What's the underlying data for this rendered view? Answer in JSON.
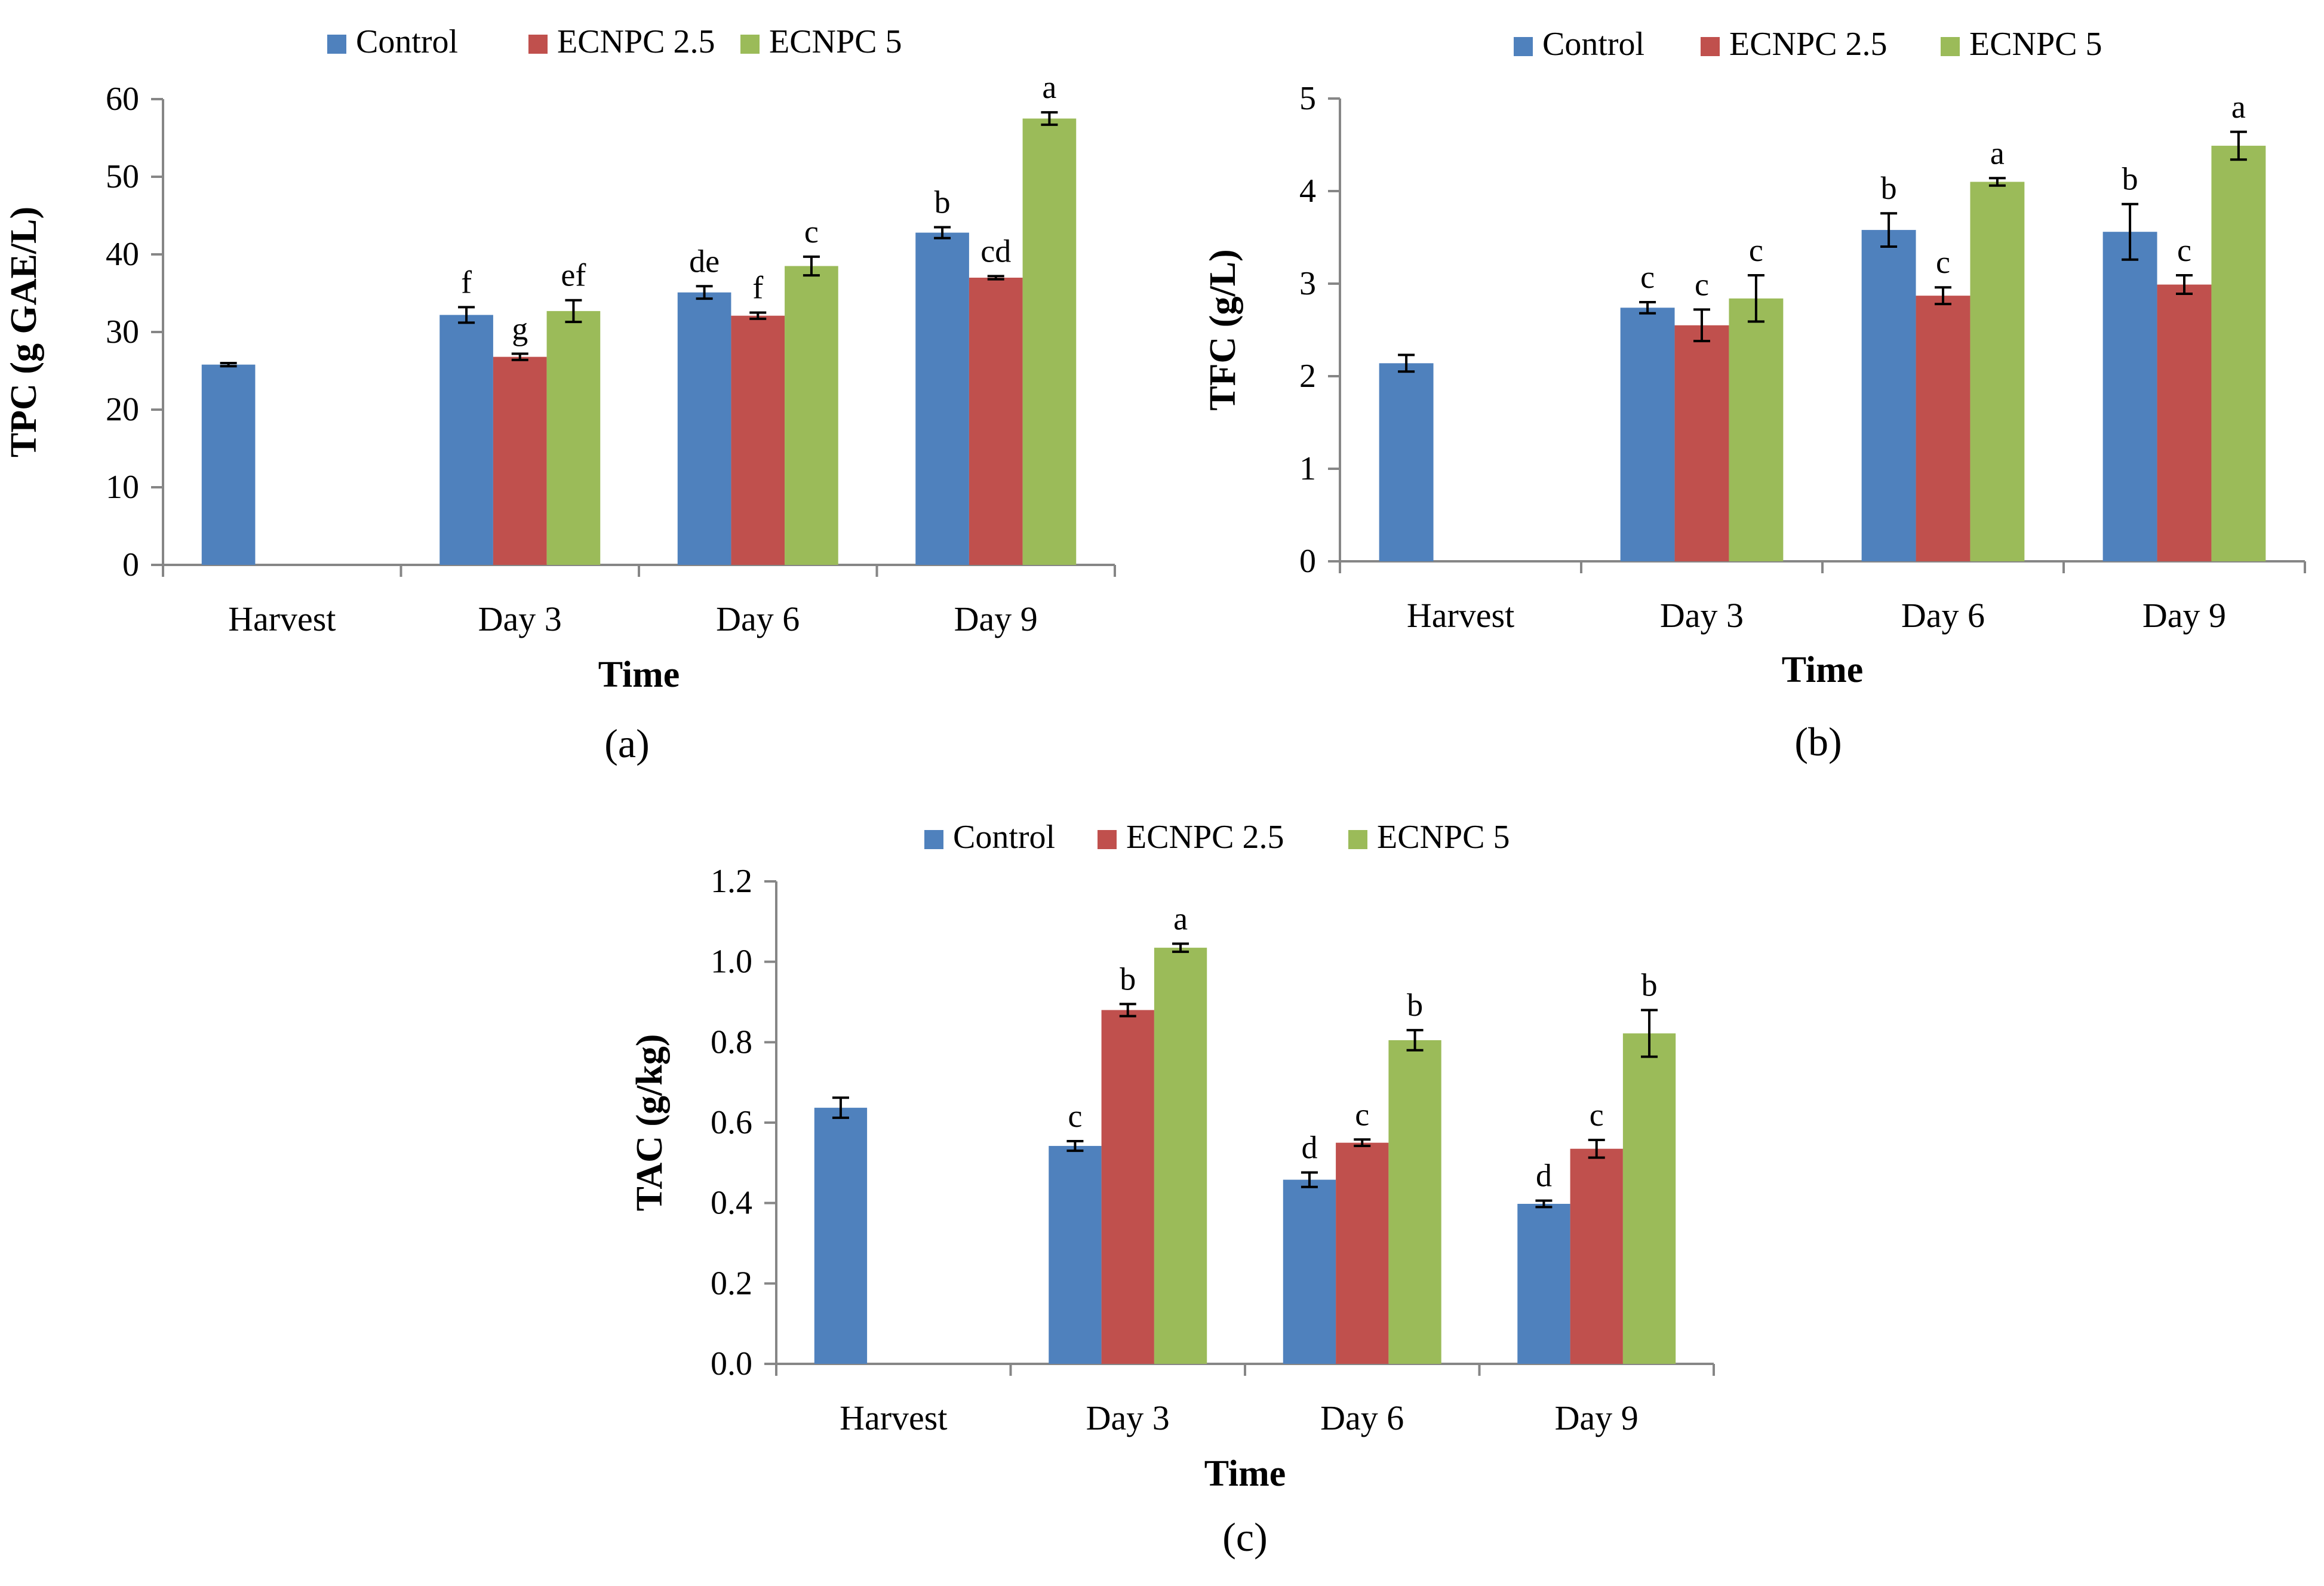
{
  "chart_data": [
    {
      "type": "bar",
      "title": "",
      "panel_label": "(a)",
      "xlabel": "Time",
      "ylabel": "TPC (g GAE/L)",
      "ylim": [
        0,
        60
      ],
      "yticks": [
        0,
        10,
        20,
        30,
        40,
        50,
        60
      ],
      "ytick_labels": [
        "0",
        "10",
        "20",
        "30",
        "40",
        "50",
        "60"
      ],
      "categories": [
        "Harvest",
        "Day 3",
        "Day 6",
        "Day 9"
      ],
      "legend_position": "top",
      "series": [
        {
          "name": "Control",
          "color": "#4F81BD",
          "values": [
            25.8,
            32.2,
            35.1,
            42.8
          ],
          "errors": [
            0.2,
            1.0,
            0.8,
            0.7
          ],
          "labels": [
            "",
            "f",
            "de",
            "b"
          ]
        },
        {
          "name": "ECNPC 2.5",
          "color": "#C0504D",
          "values": [
            null,
            26.8,
            32.1,
            37.0
          ],
          "errors": [
            null,
            0.4,
            0.4,
            0.2
          ],
          "labels": [
            "",
            "g",
            "f",
            "cd"
          ]
        },
        {
          "name": "ECNPC 5",
          "color": "#9BBB59",
          "values": [
            null,
            32.7,
            38.5,
            57.5
          ],
          "errors": [
            null,
            1.4,
            1.2,
            0.8
          ],
          "labels": [
            "",
            "ef",
            "c",
            "a"
          ]
        }
      ]
    },
    {
      "type": "bar",
      "title": "",
      "panel_label": "(b)",
      "xlabel": "Time",
      "ylabel": "TFC (g/L)",
      "ylim": [
        0,
        5
      ],
      "yticks": [
        0,
        1,
        2,
        3,
        4,
        5
      ],
      "ytick_labels": [
        "0",
        "1",
        "2",
        "3",
        "4",
        "5"
      ],
      "categories": [
        "Harvest",
        "Day 3",
        "Day 6",
        "Day 9"
      ],
      "legend_position": "top",
      "series": [
        {
          "name": "Control",
          "color": "#4F81BD",
          "values": [
            2.14,
            2.74,
            3.58,
            3.56
          ],
          "errors": [
            0.09,
            0.06,
            0.18,
            0.3
          ],
          "labels": [
            "",
            "c",
            "b",
            "b"
          ]
        },
        {
          "name": "ECNPC 2.5",
          "color": "#C0504D",
          "values": [
            null,
            2.55,
            2.87,
            2.99
          ],
          "errors": [
            null,
            0.17,
            0.09,
            0.1
          ],
          "labels": [
            "",
            "c",
            "c",
            "c"
          ]
        },
        {
          "name": "ECNPC 5",
          "color": "#9BBB59",
          "values": [
            null,
            2.84,
            4.1,
            4.49
          ],
          "errors": [
            null,
            0.25,
            0.04,
            0.15
          ],
          "labels": [
            "",
            "c",
            "a",
            "a"
          ]
        }
      ]
    },
    {
      "type": "bar",
      "title": "",
      "panel_label": "(c)",
      "xlabel": "Time",
      "ylabel": "TAC (g/kg)",
      "ylim": [
        0,
        1.2
      ],
      "yticks": [
        0,
        0.2,
        0.4,
        0.6,
        0.8,
        1.0,
        1.2
      ],
      "ytick_labels": [
        "0.0",
        "0.2",
        "0.4",
        "0.6",
        "0.8",
        "1.0",
        "1.2"
      ],
      "categories": [
        "Harvest",
        "Day 3",
        "Day 6",
        "Day 9"
      ],
      "legend_position": "top",
      "series": [
        {
          "name": "Control",
          "color": "#4F81BD",
          "values": [
            0.637,
            0.542,
            0.458,
            0.398
          ],
          "errors": [
            0.025,
            0.012,
            0.018,
            0.008
          ],
          "labels": [
            "",
            "c",
            "d",
            "d"
          ]
        },
        {
          "name": "ECNPC 2.5",
          "color": "#C0504D",
          "values": [
            null,
            0.88,
            0.55,
            0.535
          ],
          "errors": [
            null,
            0.015,
            0.008,
            0.022
          ],
          "labels": [
            "",
            "b",
            "c",
            "c"
          ]
        },
        {
          "name": "ECNPC 5",
          "color": "#9BBB59",
          "values": [
            null,
            1.035,
            0.805,
            0.822
          ],
          "errors": [
            null,
            0.01,
            0.025,
            0.058
          ],
          "labels": [
            "",
            "a",
            "b",
            "b"
          ]
        }
      ]
    }
  ]
}
